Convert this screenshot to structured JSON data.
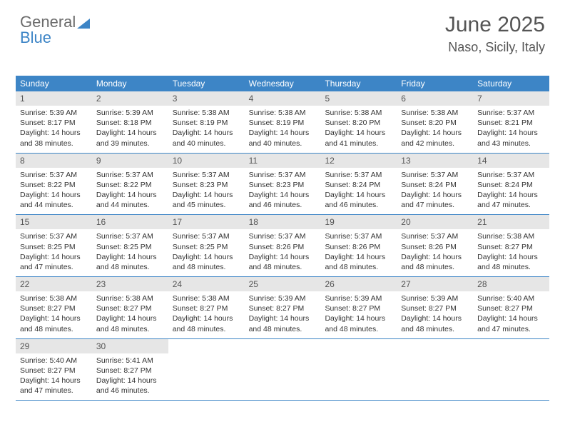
{
  "logo": {
    "text1": "General",
    "text2": "Blue"
  },
  "title": "June 2025",
  "location": "Naso, Sicily, Italy",
  "colors": {
    "header_bg": "#3d85c6",
    "header_fg": "#ffffff",
    "daynum_bg": "#e6e6e6",
    "daynum_fg": "#555555",
    "body_fg": "#333333",
    "page_bg": "#ffffff",
    "divider": "#3d85c6"
  },
  "fonts": {
    "title_pt": 30,
    "location_pt": 18,
    "dow_pt": 12,
    "daynum_pt": 12,
    "body_pt": 10.5
  },
  "dow": [
    "Sunday",
    "Monday",
    "Tuesday",
    "Wednesday",
    "Thursday",
    "Friday",
    "Saturday"
  ],
  "weeks": [
    [
      {
        "n": "1",
        "sr": "5:39 AM",
        "ss": "8:17 PM",
        "dl": "14 hours and 38 minutes."
      },
      {
        "n": "2",
        "sr": "5:39 AM",
        "ss": "8:18 PM",
        "dl": "14 hours and 39 minutes."
      },
      {
        "n": "3",
        "sr": "5:38 AM",
        "ss": "8:19 PM",
        "dl": "14 hours and 40 minutes."
      },
      {
        "n": "4",
        "sr": "5:38 AM",
        "ss": "8:19 PM",
        "dl": "14 hours and 40 minutes."
      },
      {
        "n": "5",
        "sr": "5:38 AM",
        "ss": "8:20 PM",
        "dl": "14 hours and 41 minutes."
      },
      {
        "n": "6",
        "sr": "5:38 AM",
        "ss": "8:20 PM",
        "dl": "14 hours and 42 minutes."
      },
      {
        "n": "7",
        "sr": "5:37 AM",
        "ss": "8:21 PM",
        "dl": "14 hours and 43 minutes."
      }
    ],
    [
      {
        "n": "8",
        "sr": "5:37 AM",
        "ss": "8:22 PM",
        "dl": "14 hours and 44 minutes."
      },
      {
        "n": "9",
        "sr": "5:37 AM",
        "ss": "8:22 PM",
        "dl": "14 hours and 44 minutes."
      },
      {
        "n": "10",
        "sr": "5:37 AM",
        "ss": "8:23 PM",
        "dl": "14 hours and 45 minutes."
      },
      {
        "n": "11",
        "sr": "5:37 AM",
        "ss": "8:23 PM",
        "dl": "14 hours and 46 minutes."
      },
      {
        "n": "12",
        "sr": "5:37 AM",
        "ss": "8:24 PM",
        "dl": "14 hours and 46 minutes."
      },
      {
        "n": "13",
        "sr": "5:37 AM",
        "ss": "8:24 PM",
        "dl": "14 hours and 47 minutes."
      },
      {
        "n": "14",
        "sr": "5:37 AM",
        "ss": "8:24 PM",
        "dl": "14 hours and 47 minutes."
      }
    ],
    [
      {
        "n": "15",
        "sr": "5:37 AM",
        "ss": "8:25 PM",
        "dl": "14 hours and 47 minutes."
      },
      {
        "n": "16",
        "sr": "5:37 AM",
        "ss": "8:25 PM",
        "dl": "14 hours and 48 minutes."
      },
      {
        "n": "17",
        "sr": "5:37 AM",
        "ss": "8:25 PM",
        "dl": "14 hours and 48 minutes."
      },
      {
        "n": "18",
        "sr": "5:37 AM",
        "ss": "8:26 PM",
        "dl": "14 hours and 48 minutes."
      },
      {
        "n": "19",
        "sr": "5:37 AM",
        "ss": "8:26 PM",
        "dl": "14 hours and 48 minutes."
      },
      {
        "n": "20",
        "sr": "5:37 AM",
        "ss": "8:26 PM",
        "dl": "14 hours and 48 minutes."
      },
      {
        "n": "21",
        "sr": "5:38 AM",
        "ss": "8:27 PM",
        "dl": "14 hours and 48 minutes."
      }
    ],
    [
      {
        "n": "22",
        "sr": "5:38 AM",
        "ss": "8:27 PM",
        "dl": "14 hours and 48 minutes."
      },
      {
        "n": "23",
        "sr": "5:38 AM",
        "ss": "8:27 PM",
        "dl": "14 hours and 48 minutes."
      },
      {
        "n": "24",
        "sr": "5:38 AM",
        "ss": "8:27 PM",
        "dl": "14 hours and 48 minutes."
      },
      {
        "n": "25",
        "sr": "5:39 AM",
        "ss": "8:27 PM",
        "dl": "14 hours and 48 minutes."
      },
      {
        "n": "26",
        "sr": "5:39 AM",
        "ss": "8:27 PM",
        "dl": "14 hours and 48 minutes."
      },
      {
        "n": "27",
        "sr": "5:39 AM",
        "ss": "8:27 PM",
        "dl": "14 hours and 48 minutes."
      },
      {
        "n": "28",
        "sr": "5:40 AM",
        "ss": "8:27 PM",
        "dl": "14 hours and 47 minutes."
      }
    ],
    [
      {
        "n": "29",
        "sr": "5:40 AM",
        "ss": "8:27 PM",
        "dl": "14 hours and 47 minutes."
      },
      {
        "n": "30",
        "sr": "5:41 AM",
        "ss": "8:27 PM",
        "dl": "14 hours and 46 minutes."
      },
      null,
      null,
      null,
      null,
      null
    ]
  ],
  "labels": {
    "sunrise": "Sunrise: ",
    "sunset": "Sunset: ",
    "daylight": "Daylight: "
  }
}
